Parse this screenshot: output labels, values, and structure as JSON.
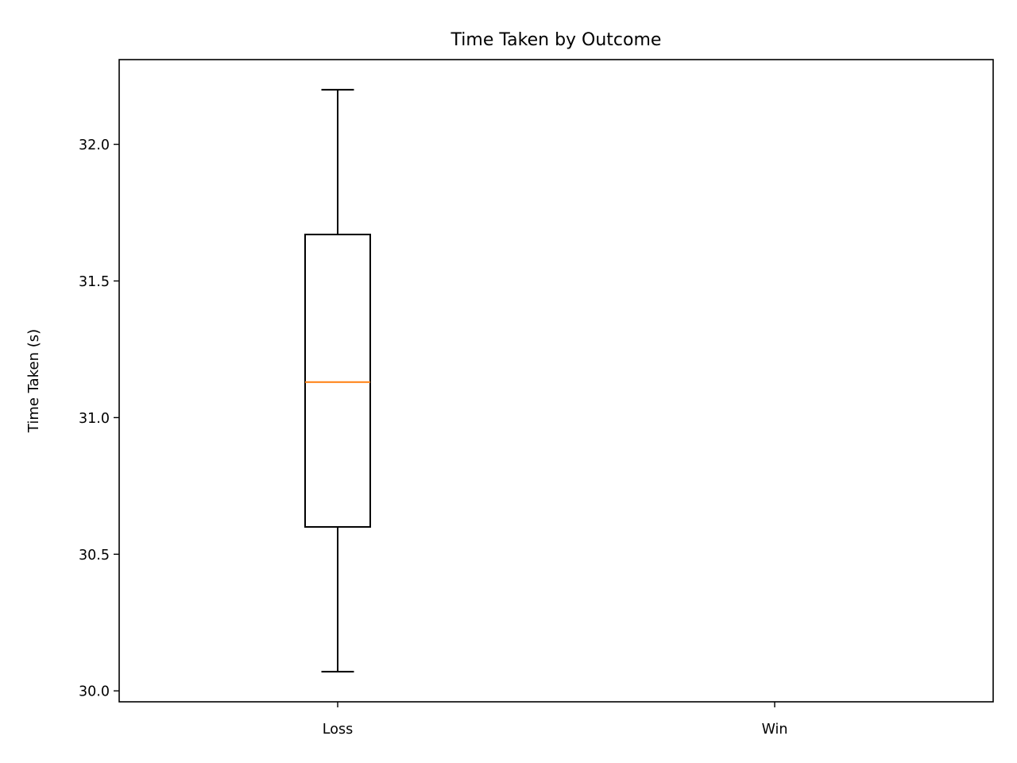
{
  "chart_data": {
    "type": "box",
    "title": "Time Taken by Outcome",
    "xlabel": "",
    "ylabel": "Time Taken (s)",
    "categories": [
      "Loss",
      "Win"
    ],
    "ylim": [
      29.96,
      32.31
    ],
    "yticks": [
      30.0,
      30.5,
      31.0,
      31.5,
      32.0
    ],
    "ytick_labels": [
      "30.0",
      "30.5",
      "31.0",
      "31.5",
      "32.0"
    ],
    "boxes": [
      {
        "category": "Loss",
        "whisker_low": 30.07,
        "q1": 30.6,
        "median": 31.13,
        "q3": 31.67,
        "whisker_high": 32.2
      },
      {
        "category": "Win",
        "whisker_low": null,
        "q1": null,
        "median": null,
        "q3": null,
        "whisker_high": null
      }
    ],
    "grid": false,
    "colors": {
      "box": "#000000",
      "median": "#ff7f0e"
    }
  }
}
